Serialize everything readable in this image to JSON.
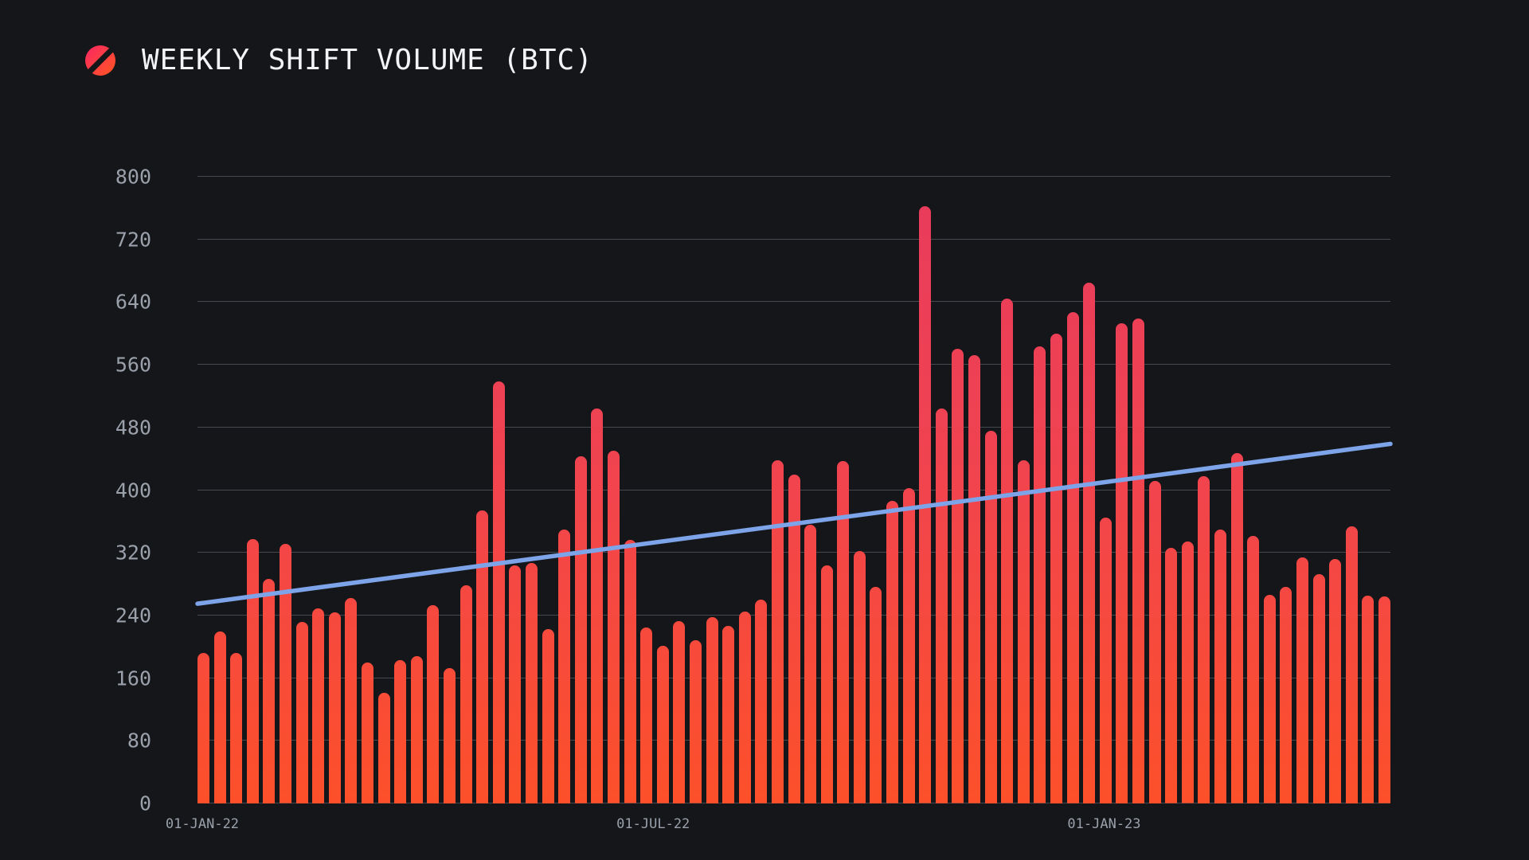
{
  "header": {
    "title": "WEEKLY SHIFT VOLUME (BTC)"
  },
  "colors": {
    "background": "#15161a",
    "title_text": "#f3f4f6",
    "axis_text": "#9aa1ab",
    "grid_line": "#45484f",
    "bar_gradient_top": "#e83b5d",
    "bar_gradient_bottom": "#fd502a",
    "trend_line": "#7da3e8",
    "logo_gradient_start": "#fb2e59",
    "logo_gradient_end": "#ff4f2b"
  },
  "chart_data": {
    "type": "bar",
    "title": "WEEKLY SHIFT VOLUME (BTC)",
    "ylabel": "",
    "xlabel": "",
    "ylim": [
      0,
      800
    ],
    "y_ticks": [
      0,
      80,
      160,
      240,
      320,
      400,
      480,
      560,
      640,
      720,
      800
    ],
    "grid": "horizontal",
    "legend": "none",
    "x_ticks": [
      {
        "label": "01-JAN-22",
        "pos": 0.004
      },
      {
        "label": "01-JUL-22",
        "pos": 0.382
      },
      {
        "label": "01-JAN-23",
        "pos": 0.76
      }
    ],
    "values": [
      192,
      220,
      192,
      338,
      287,
      331,
      232,
      249,
      244,
      262,
      180,
      141,
      183,
      188,
      253,
      173,
      279,
      374,
      539,
      304,
      307,
      223,
      350,
      443,
      504,
      450,
      336,
      225,
      201,
      233,
      208,
      238,
      227,
      245,
      260,
      438,
      420,
      356,
      304,
      437,
      322,
      277,
      386,
      403,
      762,
      504,
      580,
      572,
      476,
      644,
      438,
      583,
      600,
      627,
      665,
      365,
      613,
      619,
      412,
      326,
      334,
      418,
      350,
      447,
      342,
      266,
      277,
      314,
      293,
      312,
      354,
      265,
      264
    ],
    "trend_line": {
      "start_value": 255,
      "end_value": 459
    }
  }
}
